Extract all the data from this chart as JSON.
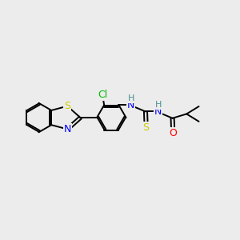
{
  "bg_color": "#ececec",
  "bond_color": "#000000",
  "colors": {
    "S": "#cccc00",
    "N": "#0000ff",
    "O": "#ff0000",
    "Cl": "#00bb00",
    "C": "#000000",
    "H": "#4a9090"
  },
  "figsize": [
    3.0,
    3.0
  ],
  "dpi": 100
}
